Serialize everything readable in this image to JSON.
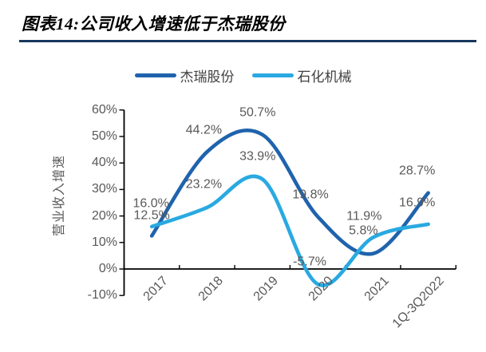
{
  "header": {
    "title": "图表14:公司收入增速低于杰瑞股份",
    "rule_color": "#17375D"
  },
  "chart_data": {
    "type": "line",
    "title": "公司收入增速低于杰瑞股份",
    "categories": [
      "2017",
      "2018",
      "2019",
      "2020",
      "2021",
      "1Q-3Q2022"
    ],
    "series": [
      {
        "name": "杰瑞股份",
        "color": "#1F63AD",
        "values": [
          12.5,
          44.2,
          50.7,
          19.8,
          5.8,
          28.7
        ],
        "point_labels": [
          "12.5%",
          "44.2%",
          "50.7%",
          "19.8%",
          "5.8%",
          "28.7%"
        ]
      },
      {
        "name": "石化机械",
        "color": "#29A9E1",
        "values": [
          16.0,
          23.2,
          33.9,
          -5.7,
          11.9,
          16.9
        ],
        "point_labels": [
          "16.0%",
          "23.2%",
          "33.9%",
          "-5.7%",
          "11.9%",
          "16.9%"
        ]
      }
    ],
    "ylabel": "营业收入增速",
    "xlabel": "",
    "y_ticks": [
      "60%",
      "50%",
      "40%",
      "30%",
      "20%",
      "10%",
      "0%",
      "-10%"
    ],
    "y_tick_values": [
      60,
      50,
      40,
      30,
      20,
      10,
      0,
      -10
    ],
    "ylim": [
      -10,
      60
    ],
    "grid": false,
    "smooth": true,
    "legend_position": "top",
    "x_label_rotation": -45,
    "axis_color": "#000000",
    "tick_label_color": "#595959",
    "data_label_color": "#595959",
    "label_offsets": [
      [
        [
          0,
          -26
        ],
        [
          -4,
          -27
        ],
        [
          -6,
          -28
        ],
        [
          -9,
          -27
        ],
        [
          -12,
          -29
        ],
        [
          -14,
          -28
        ]
      ],
      [
        [
          -1,
          -29
        ],
        [
          -4,
          -29
        ],
        [
          -6,
          -28
        ],
        [
          -10,
          -28
        ],
        [
          -11,
          -26
        ],
        [
          -14,
          -27
        ]
      ]
    ]
  }
}
